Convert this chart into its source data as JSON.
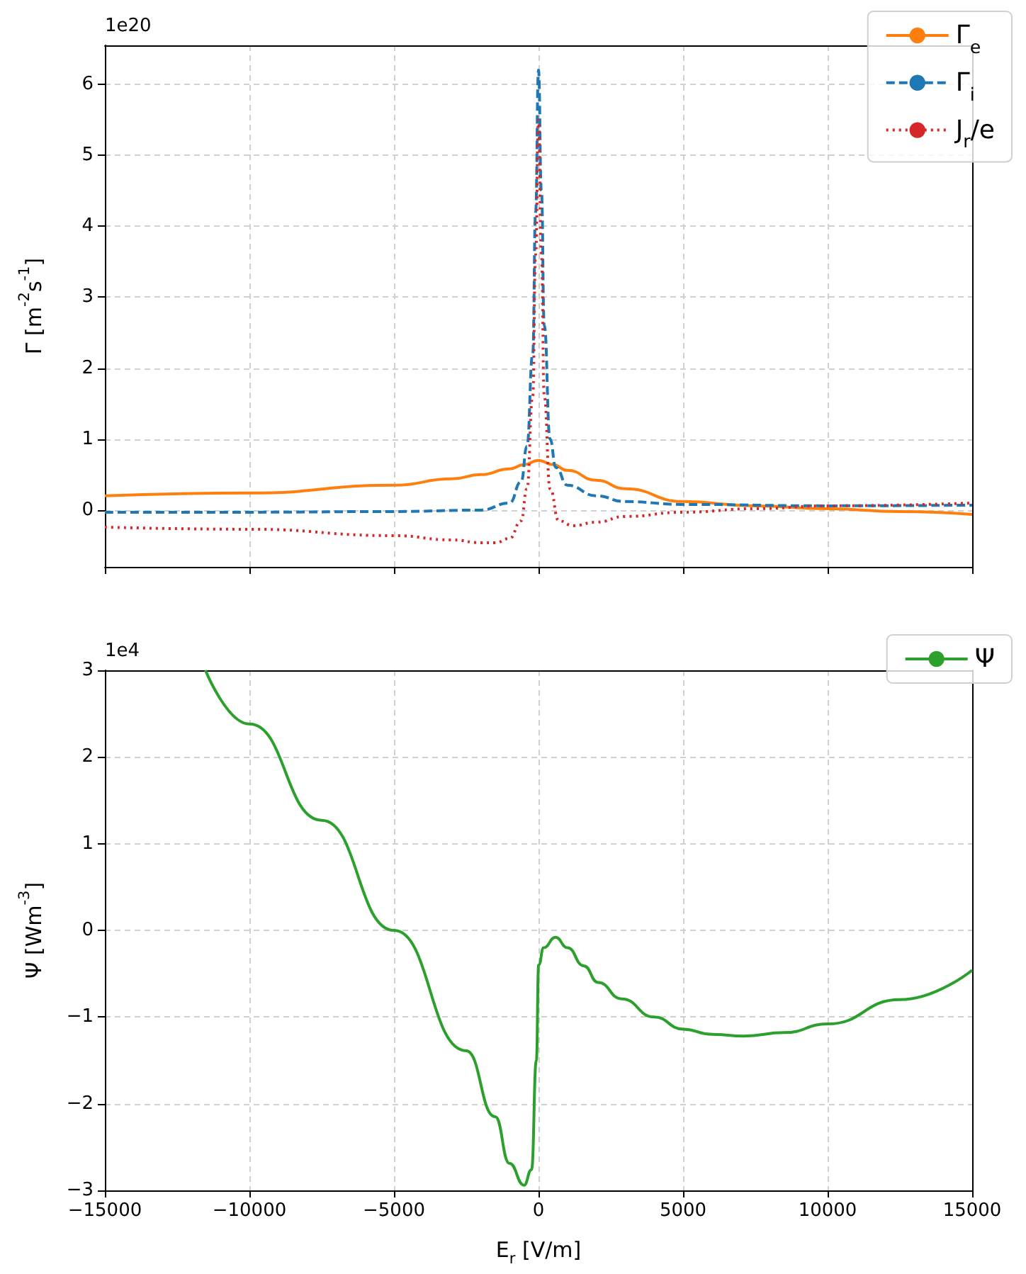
{
  "chart_data": [
    {
      "type": "line",
      "ylabel": "Γ [m$^{-2}$s$^{-1}$]",
      "annotations": [
        "1e20"
      ],
      "xlim": [
        -15000,
        15000
      ],
      "xticks": [
        -15000,
        -10000,
        -5000,
        0,
        5000,
        10000,
        15000
      ],
      "ylim": [
        -0.8,
        6.55
      ],
      "yticks": [
        0,
        1,
        2,
        3,
        4,
        5,
        6
      ],
      "grid": true,
      "legend": "top right",
      "tick_labels": "y",
      "series": [
        {
          "name": "Γ$_{e}$",
          "color": "#ff7f0e",
          "line_style": "solid",
          "x": [
            -15000,
            -10000,
            -5000,
            -3000,
            -2000,
            -1000,
            -500,
            0,
            500,
            1000,
            2000,
            3000,
            5000,
            7500,
            10000,
            12500,
            15000
          ],
          "values": [
            0.2,
            0.24,
            0.35,
            0.44,
            0.5,
            0.58,
            0.64,
            0.7,
            0.64,
            0.56,
            0.42,
            0.3,
            0.12,
            0.06,
            0.02,
            -0.02,
            -0.06
          ]
        },
        {
          "name": "Γ$_{i}$",
          "color": "#1f77b4",
          "line_style": "dashed",
          "x": [
            -15000,
            -10000,
            -5000,
            -2000,
            -1000,
            -600,
            -400,
            -200,
            -100,
            0,
            100,
            200,
            400,
            600,
            1000,
            2000,
            3000,
            5000,
            10000,
            15000
          ],
          "values": [
            -0.03,
            -0.03,
            -0.02,
            0.0,
            0.1,
            0.4,
            0.9,
            2.2,
            4.2,
            6.2,
            4.5,
            2.6,
            1.0,
            0.6,
            0.35,
            0.2,
            0.12,
            0.08,
            0.06,
            0.07
          ]
        },
        {
          "name": "J$_{r}$/e",
          "color": "#d62728",
          "line_style": "dotted",
          "x": [
            -15000,
            -10000,
            -5000,
            -3000,
            -2000,
            -1500,
            -1000,
            -600,
            -400,
            -200,
            -100,
            0,
            100,
            200,
            400,
            700,
            1200,
            2000,
            3000,
            5000,
            7500,
            10000,
            15000
          ],
          "values": [
            -0.24,
            -0.27,
            -0.36,
            -0.42,
            -0.46,
            -0.46,
            -0.4,
            -0.15,
            0.3,
            1.6,
            3.6,
            5.5,
            3.6,
            1.6,
            0.3,
            -0.15,
            -0.22,
            -0.17,
            -0.09,
            -0.03,
            0.02,
            0.06,
            0.1
          ]
        }
      ]
    },
    {
      "type": "line",
      "xlabel": "E$_{r}$ [V/m]",
      "ylabel": "Ψ [Wm$^{-3}$]",
      "annotations": [
        "1e4"
      ],
      "xlim": [
        -15000,
        15000
      ],
      "xticks": [
        -15000,
        -10000,
        -5000,
        0,
        5000,
        10000,
        15000
      ],
      "ylim": [
        -3,
        3
      ],
      "yticks": [
        -3,
        -2,
        -1,
        0,
        1,
        2,
        3
      ],
      "grid": true,
      "legend": "top right",
      "series": [
        {
          "name": "Ψ",
          "color": "#2ca02c",
          "line_style": "solid",
          "x": [
            -11520,
            -10000,
            -7500,
            -5000,
            -2500,
            -1500,
            -1000,
            -500,
            -240,
            -74,
            5,
            179,
            588,
            1000,
            1569,
            2059,
            2876,
            4000,
            5000,
            6000,
            7110,
            8500,
            10000,
            12500,
            15000
          ],
          "values": [
            3.0,
            2.38,
            1.27,
            0.0,
            -1.39,
            -2.15,
            -2.69,
            -2.94,
            -2.76,
            -1.5,
            -0.4,
            -0.2,
            -0.08,
            -0.2,
            -0.41,
            -0.6,
            -0.79,
            -1.0,
            -1.14,
            -1.2,
            -1.22,
            -1.18,
            -1.08,
            -0.8,
            -0.46
          ]
        }
      ]
    }
  ]
}
